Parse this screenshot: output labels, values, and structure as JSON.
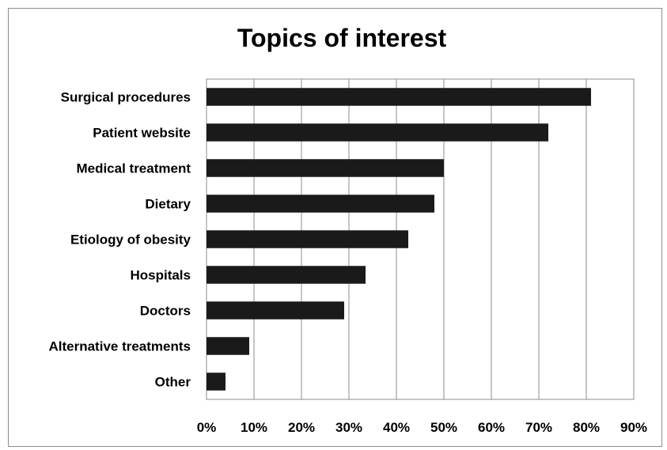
{
  "chart_data": {
    "type": "bar",
    "orientation": "horizontal",
    "title": "Topics of interest",
    "categories": [
      "Surgical procedures",
      "Patient website",
      "Medical treatment",
      "Dietary",
      "Etiology of obesity",
      "Hospitals",
      "Doctors",
      "Alternative treatments",
      "Other"
    ],
    "values": [
      81,
      72,
      50,
      48,
      42.5,
      33.5,
      29,
      9,
      4
    ],
    "xlim": [
      0,
      90
    ],
    "xticks": [
      "0%",
      "10%",
      "20%",
      "30%",
      "40%",
      "50%",
      "60%",
      "70%",
      "80%",
      "90%"
    ],
    "grid": true,
    "legend": "none",
    "bar_color": "#1a1a1a",
    "grid_color": "#8c8c8c"
  }
}
